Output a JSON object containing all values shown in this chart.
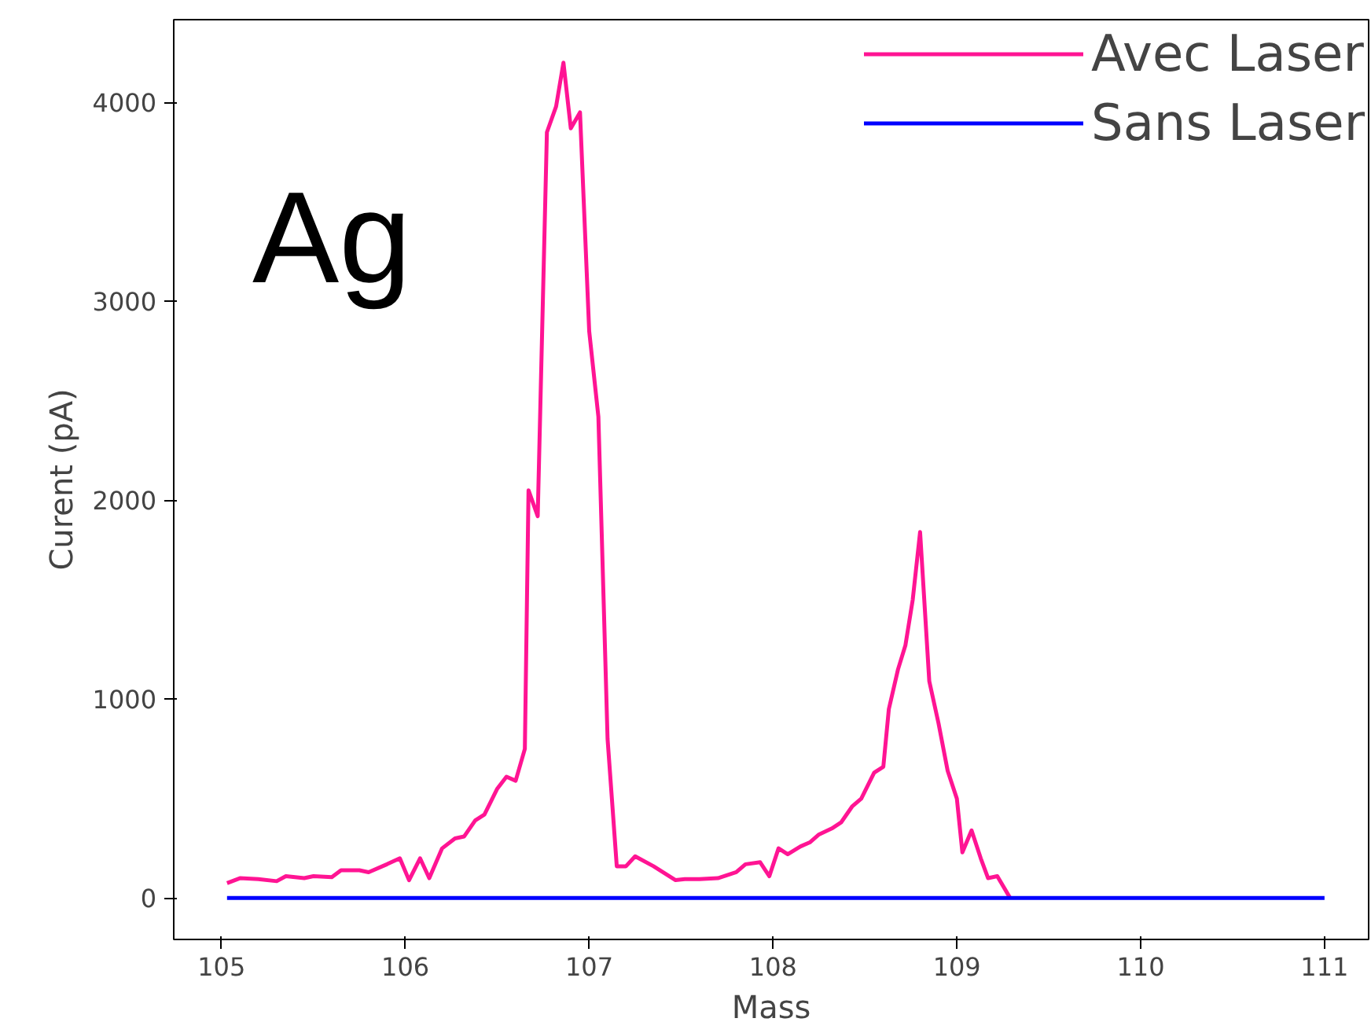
{
  "chart_data": {
    "type": "line",
    "xlabel": "Mass",
    "ylabel": "Curent (pA)",
    "annotations": [
      "Ag"
    ],
    "xlim": [
      104.74,
      111.24
    ],
    "ylim": [
      -208,
      4416
    ],
    "xticks": [
      105,
      106,
      107,
      108,
      109,
      110,
      111
    ],
    "yticks": [
      0,
      1000,
      2000,
      3000,
      4000
    ],
    "grid": false,
    "legend": "top right",
    "line_style": "solid",
    "marker": "none",
    "series": [
      {
        "name": "Avec Laser",
        "color": "#ff1493",
        "x": [
          105.03,
          105.1,
          105.2,
          105.3,
          105.35,
          105.45,
          105.5,
          105.6,
          105.65,
          105.75,
          105.8,
          105.9,
          105.97,
          106.02,
          106.08,
          106.13,
          106.2,
          106.27,
          106.32,
          106.38,
          106.43,
          106.5,
          106.55,
          106.6,
          106.65,
          106.67,
          106.72,
          106.77,
          106.82,
          106.86,
          106.9,
          106.95,
          107.0,
          107.05,
          107.1,
          107.15,
          107.2,
          107.25,
          107.35,
          107.47,
          107.52,
          107.6,
          107.7,
          107.8,
          107.85,
          107.93,
          107.98,
          108.03,
          108.08,
          108.15,
          108.2,
          108.25,
          108.32,
          108.37,
          108.43,
          108.48,
          108.55,
          108.6,
          108.63,
          108.68,
          108.72,
          108.76,
          108.8,
          108.85,
          108.9,
          108.95,
          109.0,
          109.03,
          109.08,
          109.13,
          109.17,
          109.22,
          109.29
        ],
        "values": [
          75,
          100,
          95,
          85,
          110,
          100,
          110,
          105,
          140,
          140,
          130,
          170,
          200,
          90,
          200,
          100,
          250,
          300,
          310,
          390,
          420,
          550,
          610,
          590,
          750,
          2050,
          1920,
          3850,
          3980,
          4200,
          3870,
          3950,
          2850,
          2420,
          800,
          160,
          160,
          210,
          160,
          90,
          95,
          95,
          100,
          130,
          170,
          180,
          110,
          250,
          220,
          260,
          280,
          320,
          350,
          380,
          460,
          500,
          630,
          660,
          950,
          1150,
          1270,
          1500,
          1840,
          1090,
          880,
          640,
          500,
          230,
          340,
          200,
          100,
          110,
          0
        ]
      },
      {
        "name": "Sans Laser",
        "color": "#0000ff",
        "x": [
          105.03,
          111.0
        ],
        "values": [
          0,
          0
        ]
      }
    ]
  }
}
